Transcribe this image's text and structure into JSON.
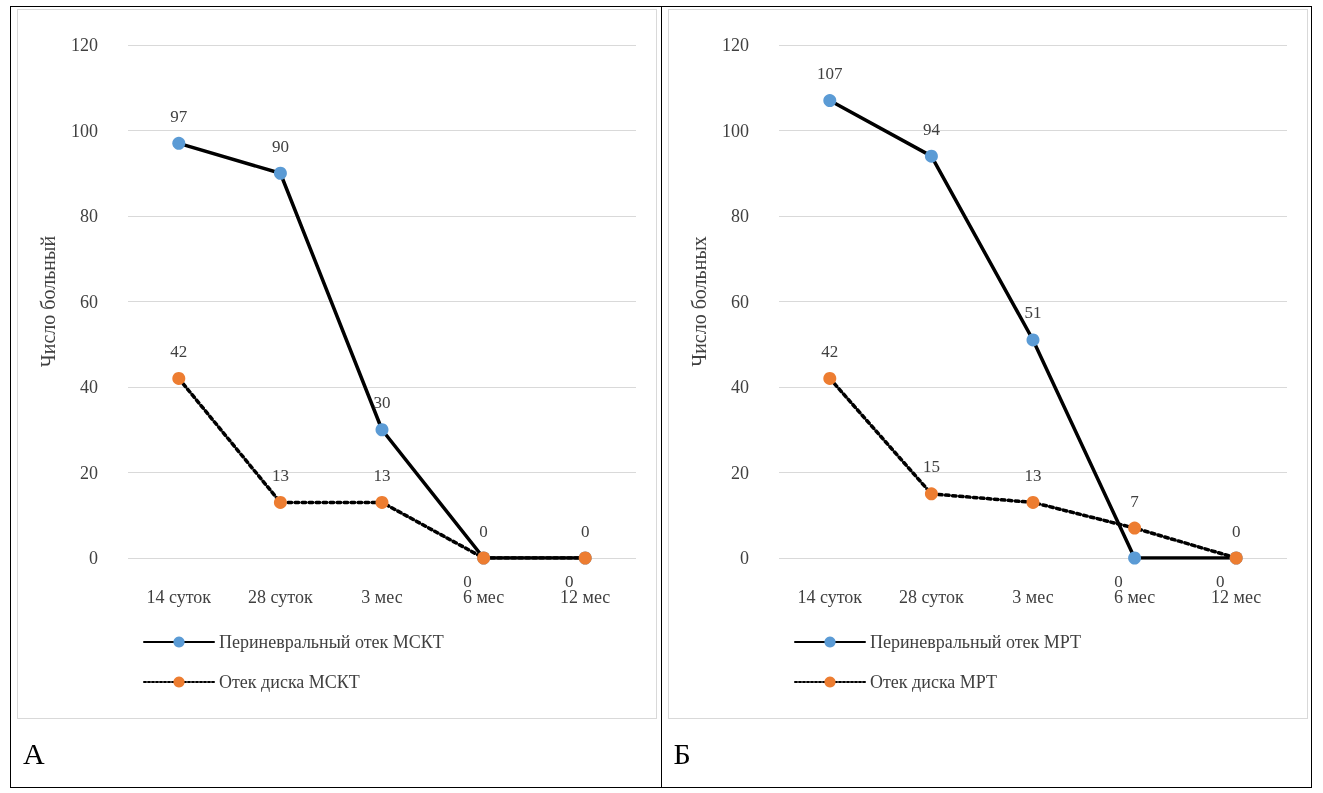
{
  "chart_data": [
    {
      "type": "line",
      "categories": [
        "14 суток",
        "28 суток",
        "3 мес",
        "6 мес",
        "12 мес"
      ],
      "ylabel": "Число больный",
      "ylim": [
        0,
        120
      ],
      "yticks": [
        0,
        20,
        40,
        60,
        80,
        100,
        120
      ],
      "grid": "y",
      "legend": "bottom",
      "marker": "circle",
      "data_labels": true,
      "annotations": [
        "А"
      ],
      "series": [
        {
          "name": "Периневральный отек МСКТ",
          "color": "#5b9bd5",
          "line_style": "solid",
          "values": [
            97,
            90,
            30,
            0,
            0
          ]
        },
        {
          "name": "Отек диска МСКТ",
          "color": "#ed7d31",
          "line_style": "dotted",
          "values": [
            42,
            13,
            13,
            0,
            0
          ]
        }
      ]
    },
    {
      "type": "line",
      "categories": [
        "14 суток",
        "28 суток",
        "3 мес",
        "6 мес",
        "12 мес"
      ],
      "ylabel": "Число больных",
      "ylim": [
        0,
        120
      ],
      "yticks": [
        0,
        20,
        40,
        60,
        80,
        100,
        120
      ],
      "grid": "y",
      "legend": "bottom",
      "marker": "circle",
      "data_labels": true,
      "annotations": [
        "Б"
      ],
      "series": [
        {
          "name": "Периневральный отек МРТ",
          "color": "#5b9bd5",
          "line_style": "solid",
          "values": [
            107,
            94,
            51,
            0,
            0
          ]
        },
        {
          "name": "Отек диска МРТ",
          "color": "#ed7d31",
          "line_style": "dotted",
          "values": [
            42,
            15,
            13,
            7,
            0
          ]
        }
      ]
    }
  ]
}
